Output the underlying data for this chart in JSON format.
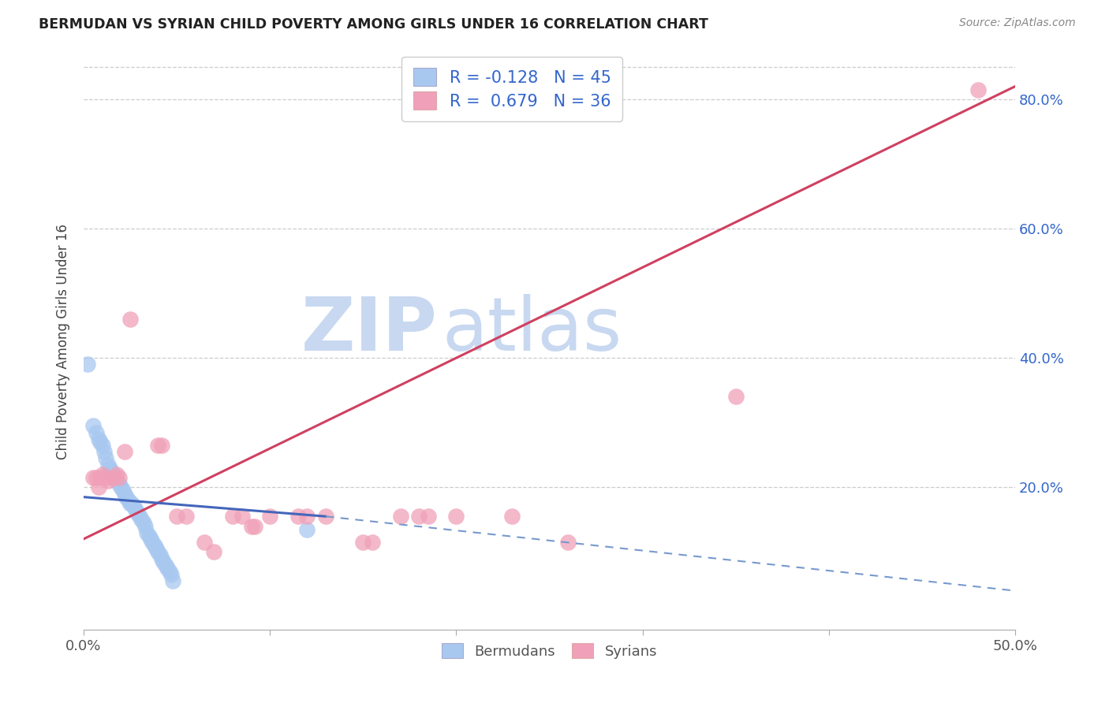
{
  "title": "BERMUDAN VS SYRIAN CHILD POVERTY AMONG GIRLS UNDER 16 CORRELATION CHART",
  "source": "Source: ZipAtlas.com",
  "ylabel": "Child Poverty Among Girls Under 16",
  "xlim": [
    0.0,
    0.5
  ],
  "ylim": [
    -0.02,
    0.87
  ],
  "xticks": [
    0.0,
    0.1,
    0.2,
    0.3,
    0.4,
    0.5
  ],
  "xtick_labels": [
    "0.0%",
    "",
    "",
    "",
    "",
    "50.0%"
  ],
  "yticks_right": [
    0.2,
    0.4,
    0.6,
    0.8
  ],
  "ytick_labels_right": [
    "20.0%",
    "40.0%",
    "60.0%",
    "80.0%"
  ],
  "bermudan_color": "#a8c8f0",
  "syrian_color": "#f0a0b8",
  "bermudan_R": -0.128,
  "bermudan_N": 45,
  "syrian_R": 0.679,
  "syrian_N": 36,
  "legend_text_color": "#3366cc",
  "watermark_zip": "ZIP",
  "watermark_atlas": "atlas",
  "watermark_color_zip": "#c8d8f0",
  "watermark_color_atlas": "#c8d8f0",
  "syrian_line_x0": 0.0,
  "syrian_line_y0": 0.12,
  "syrian_line_x1": 0.5,
  "syrian_line_y1": 0.82,
  "bermudan_line_solid_x0": 0.0,
  "bermudan_line_solid_y0": 0.185,
  "bermudan_line_solid_x1": 0.13,
  "bermudan_line_solid_y1": 0.155,
  "bermudan_line_dash_x0": 0.13,
  "bermudan_line_dash_y0": 0.155,
  "bermudan_line_dash_x1": 0.5,
  "bermudan_line_dash_y1": 0.04,
  "bermudan_points": [
    [
      0.002,
      0.39
    ],
    [
      0.005,
      0.295
    ],
    [
      0.007,
      0.285
    ],
    [
      0.008,
      0.275
    ],
    [
      0.009,
      0.27
    ],
    [
      0.01,
      0.265
    ],
    [
      0.011,
      0.255
    ],
    [
      0.012,
      0.245
    ],
    [
      0.013,
      0.235
    ],
    [
      0.014,
      0.23
    ],
    [
      0.015,
      0.225
    ],
    [
      0.016,
      0.22
    ],
    [
      0.017,
      0.215
    ],
    [
      0.018,
      0.21
    ],
    [
      0.019,
      0.205
    ],
    [
      0.02,
      0.2
    ],
    [
      0.021,
      0.195
    ],
    [
      0.022,
      0.19
    ],
    [
      0.023,
      0.185
    ],
    [
      0.024,
      0.18
    ],
    [
      0.025,
      0.175
    ],
    [
      0.026,
      0.175
    ],
    [
      0.027,
      0.17
    ],
    [
      0.028,
      0.165
    ],
    [
      0.029,
      0.16
    ],
    [
      0.03,
      0.155
    ],
    [
      0.031,
      0.15
    ],
    [
      0.032,
      0.145
    ],
    [
      0.033,
      0.14
    ],
    [
      0.034,
      0.13
    ],
    [
      0.035,
      0.125
    ],
    [
      0.036,
      0.12
    ],
    [
      0.037,
      0.115
    ],
    [
      0.038,
      0.11
    ],
    [
      0.039,
      0.105
    ],
    [
      0.04,
      0.1
    ],
    [
      0.041,
      0.095
    ],
    [
      0.042,
      0.09
    ],
    [
      0.043,
      0.085
    ],
    [
      0.044,
      0.08
    ],
    [
      0.045,
      0.075
    ],
    [
      0.046,
      0.07
    ],
    [
      0.047,
      0.065
    ],
    [
      0.048,
      0.055
    ],
    [
      0.12,
      0.135
    ]
  ],
  "syrian_points": [
    [
      0.005,
      0.215
    ],
    [
      0.007,
      0.215
    ],
    [
      0.008,
      0.2
    ],
    [
      0.009,
      0.215
    ],
    [
      0.01,
      0.22
    ],
    [
      0.012,
      0.215
    ],
    [
      0.013,
      0.21
    ],
    [
      0.016,
      0.215
    ],
    [
      0.018,
      0.22
    ],
    [
      0.019,
      0.215
    ],
    [
      0.022,
      0.255
    ],
    [
      0.025,
      0.46
    ],
    [
      0.04,
      0.265
    ],
    [
      0.042,
      0.265
    ],
    [
      0.05,
      0.155
    ],
    [
      0.055,
      0.155
    ],
    [
      0.065,
      0.115
    ],
    [
      0.07,
      0.1
    ],
    [
      0.08,
      0.155
    ],
    [
      0.085,
      0.155
    ],
    [
      0.09,
      0.14
    ],
    [
      0.092,
      0.14
    ],
    [
      0.1,
      0.155
    ],
    [
      0.115,
      0.155
    ],
    [
      0.12,
      0.155
    ],
    [
      0.13,
      0.155
    ],
    [
      0.15,
      0.115
    ],
    [
      0.155,
      0.115
    ],
    [
      0.17,
      0.155
    ],
    [
      0.18,
      0.155
    ],
    [
      0.185,
      0.155
    ],
    [
      0.2,
      0.155
    ],
    [
      0.23,
      0.155
    ],
    [
      0.26,
      0.115
    ],
    [
      0.35,
      0.34
    ],
    [
      0.48,
      0.815
    ]
  ]
}
